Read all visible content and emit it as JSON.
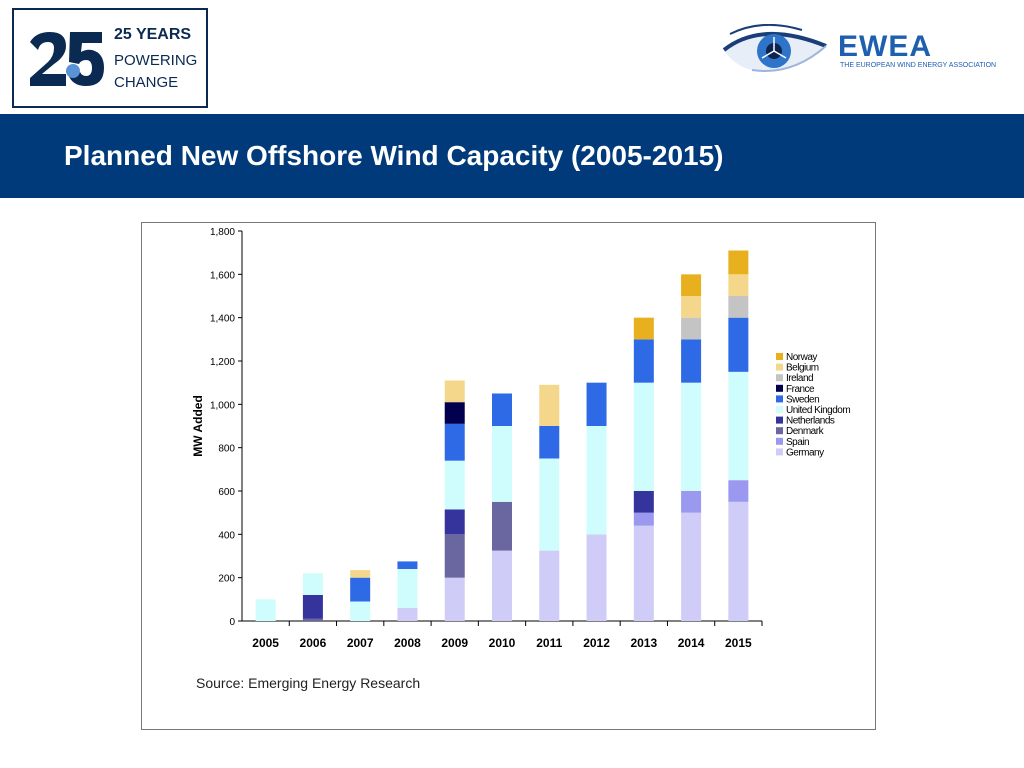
{
  "header": {
    "logo_line1": "25 YEARS",
    "logo_line2": "POWERING",
    "logo_line3": "CHANGE",
    "brand_name": "EWEA",
    "brand_subtitle": "THE EUROPEAN WIND ENERGY ASSOCIATION"
  },
  "banner": {
    "title": "Planned New Offshore Wind Capacity (2005-2015)"
  },
  "source": "Source: Emerging Energy Research",
  "chart_data": {
    "type": "bar",
    "stacked": true,
    "title": "",
    "xlabel": "",
    "ylabel": "MW Added",
    "ylim": [
      0,
      1800
    ],
    "yticks": [
      0,
      200,
      400,
      600,
      800,
      1000,
      1200,
      1400,
      1600,
      1800
    ],
    "ytick_labels": [
      "0",
      "200",
      "400",
      "600",
      "800",
      "1,000",
      "1,200",
      "1,400",
      "1,600",
      "1,800"
    ],
    "grid": false,
    "legend_position": "right",
    "categories": [
      "2005",
      "2006",
      "2007",
      "2008",
      "2009",
      "2010",
      "2011",
      "2012",
      "2013",
      "2014",
      "2015"
    ],
    "series": [
      {
        "name": "Germany",
        "color": "#cfcdf7",
        "values": [
          0,
          0,
          0,
          60,
          200,
          325,
          325,
          400,
          440,
          500,
          550
        ]
      },
      {
        "name": "Spain",
        "color": "#9a98ef",
        "values": [
          0,
          0,
          0,
          0,
          0,
          0,
          0,
          0,
          60,
          100,
          100
        ]
      },
      {
        "name": "Denmark",
        "color": "#6a66a0",
        "values": [
          0,
          10,
          0,
          0,
          200,
          225,
          0,
          0,
          0,
          0,
          0
        ]
      },
      {
        "name": "Netherlands",
        "color": "#34349c",
        "values": [
          0,
          110,
          0,
          0,
          115,
          0,
          0,
          0,
          100,
          0,
          0
        ]
      },
      {
        "name": "United Kingdom",
        "color": "#cffcfc",
        "values": [
          100,
          100,
          90,
          180,
          225,
          350,
          425,
          500,
          500,
          500,
          500
        ]
      },
      {
        "name": "Sweden",
        "color": "#2f6ae6",
        "values": [
          0,
          0,
          110,
          35,
          170,
          150,
          150,
          200,
          200,
          200,
          250
        ]
      },
      {
        "name": "France",
        "color": "#00004e",
        "values": [
          0,
          0,
          0,
          0,
          100,
          0,
          0,
          0,
          0,
          0,
          0
        ]
      },
      {
        "name": "Ireland",
        "color": "#c4c4c4",
        "values": [
          0,
          0,
          0,
          0,
          0,
          0,
          0,
          0,
          0,
          100,
          100
        ]
      },
      {
        "name": "Belgium",
        "color": "#f5d78c",
        "values": [
          0,
          0,
          35,
          0,
          100,
          0,
          190,
          0,
          0,
          100,
          100
        ]
      },
      {
        "name": "Norway",
        "color": "#e8b01e",
        "values": [
          0,
          0,
          0,
          0,
          0,
          0,
          0,
          0,
          100,
          100,
          110
        ]
      }
    ]
  }
}
